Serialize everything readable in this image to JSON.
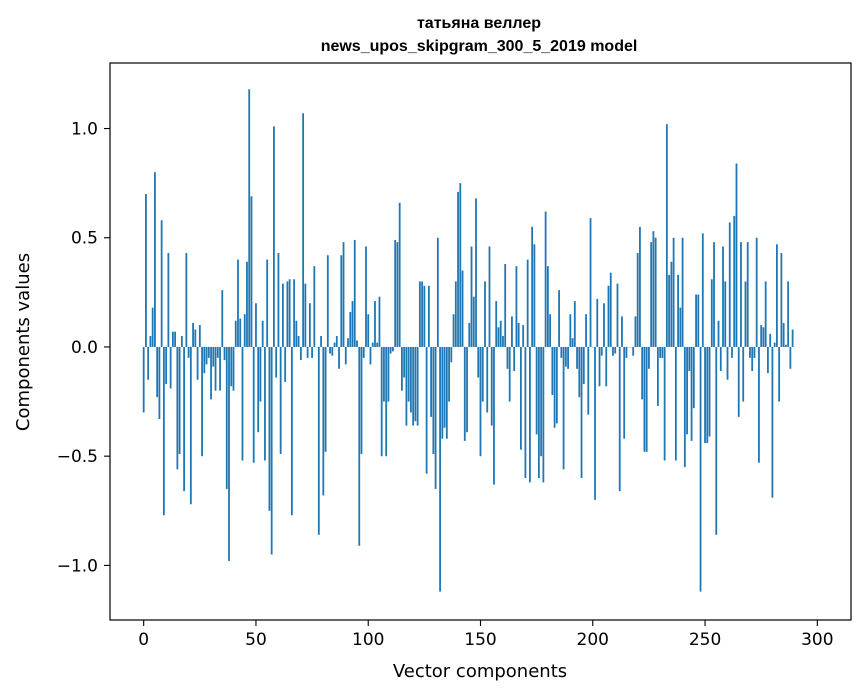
{
  "chart_data": {
    "type": "bar",
    "title_line1": "татьяна веллер",
    "title_line2": "news_upos_skipgram_300_5_2019 model",
    "xlabel": "Vector components",
    "ylabel": "Components values",
    "xlim": [
      -15,
      315
    ],
    "ylim": [
      -1.25,
      1.3
    ],
    "xticks": [
      0,
      50,
      100,
      150,
      200,
      250,
      300
    ],
    "yticks": [
      -1.0,
      -0.5,
      0.0,
      0.5,
      1.0
    ],
    "ytick_labels": [
      "−1.0",
      "−0.5",
      "0.0",
      "0.5",
      "1.0"
    ],
    "xtick_labels": [
      "0",
      "50",
      "100",
      "150",
      "200",
      "250",
      "300"
    ],
    "grid": false,
    "bar_color": "#1f77b4",
    "values": [
      -0.3,
      0.7,
      -0.15,
      0.05,
      0.18,
      0.8,
      -0.23,
      -0.33,
      0.58,
      -0.77,
      -0.17,
      0.43,
      -0.19,
      0.07,
      0.07,
      -0.56,
      -0.49,
      0.05,
      -0.66,
      0.43,
      -0.05,
      -0.72,
      0.11,
      0.08,
      -0.15,
      0.1,
      -0.5,
      -0.12,
      -0.08,
      -0.05,
      -0.24,
      -0.09,
      -0.2,
      -0.05,
      -0.2,
      0.26,
      -0.06,
      -0.65,
      -0.98,
      -0.18,
      -0.2,
      0.12,
      0.4,
      0.13,
      -0.52,
      0.15,
      0.39,
      1.18,
      0.69,
      -0.53,
      0.2,
      -0.39,
      -0.25,
      0.12,
      -0.52,
      0.4,
      -0.75,
      -0.95,
      1.01,
      -0.14,
      0.43,
      -0.49,
      0.29,
      -0.16,
      0.3,
      0.31,
      -0.77,
      0.31,
      0.12,
      0.05,
      -0.06,
      1.07,
      0.29,
      -0.05,
      0.2,
      -0.05,
      0.37,
      0.0,
      -0.86,
      0.05,
      -0.68,
      -0.48,
      0.42,
      -0.03,
      -0.04,
      0.02,
      0.05,
      -0.1,
      0.42,
      0.48,
      -0.08,
      0.04,
      0.16,
      0.21,
      0.49,
      0.03,
      -0.91,
      -0.49,
      -0.05,
      0.46,
      0.15,
      -0.08,
      0.02,
      0.21,
      0.02,
      0.23,
      -0.5,
      -0.25,
      -0.5,
      -0.25,
      -0.03,
      -0.02,
      0.49,
      0.48,
      0.66,
      -0.2,
      -0.14,
      -0.36,
      -0.25,
      -0.3,
      -0.36,
      -0.34,
      -0.36,
      0.3,
      0.3,
      0.28,
      -0.58,
      0.28,
      -0.32,
      -0.49,
      -0.65,
      0.5,
      -1.12,
      -0.42,
      -0.37,
      -0.42,
      -0.25,
      -0.07,
      0.15,
      0.3,
      0.71,
      0.75,
      0.35,
      -0.43,
      -0.39,
      0.11,
      0.46,
      0.23,
      0.68,
      -0.14,
      -0.5,
      -0.25,
      0.3,
      -0.3,
      0.46,
      -0.36,
      -0.63,
      0.21,
      0.09,
      0.12,
      0.05,
      0.38,
      -0.1,
      -0.25,
      0.14,
      -0.11,
      0.37,
      0.11,
      -0.47,
      0.1,
      -0.6,
      0.4,
      -0.62,
      0.55,
      0.47,
      -0.4,
      -0.6,
      -0.5,
      -0.62,
      0.62,
      0.37,
      0.15,
      -0.22,
      -0.37,
      -0.35,
      0.26,
      -0.05,
      -0.56,
      -0.09,
      -0.1,
      0.15,
      0.04,
      0.21,
      -0.1,
      -0.23,
      -0.6,
      -0.17,
      0.15,
      -0.31,
      0.59,
      0.0,
      -0.7,
      0.22,
      -0.18,
      -0.04,
      0.2,
      -0.18,
      0.28,
      0.34,
      -0.04,
      -0.03,
      0.29,
      -0.66,
      0.14,
      -0.42,
      -0.05,
      0.0,
      0.0,
      -0.04,
      0.14,
      0.43,
      0.55,
      -0.24,
      -0.48,
      -0.48,
      -0.1,
      0.48,
      0.53,
      0.5,
      -0.27,
      -0.05,
      -0.05,
      -0.52,
      1.02,
      0.33,
      0.39,
      0.5,
      -0.52,
      0.33,
      0.18,
      0.5,
      -0.55,
      -0.4,
      -0.11,
      -0.43,
      -0.28,
      0.24,
      0.24,
      -1.12,
      0.52,
      -0.44,
      -0.44,
      -0.41,
      0.31,
      0.48,
      -0.86,
      0.12,
      -0.11,
      0.46,
      0.3,
      -0.15,
      0.57,
      -0.05,
      0.6,
      0.84,
      -0.32,
      0.48,
      -0.25,
      0.3,
      0.48,
      -0.05,
      -0.11,
      -0.05,
      0.5,
      -0.53,
      0.1,
      0.09,
      0.3,
      -0.12,
      0.06,
      -0.69,
      0.02,
      0.47,
      -0.25,
      0.43,
      0.11,
      0.01,
      0.3,
      -0.1,
      0.08
    ]
  }
}
